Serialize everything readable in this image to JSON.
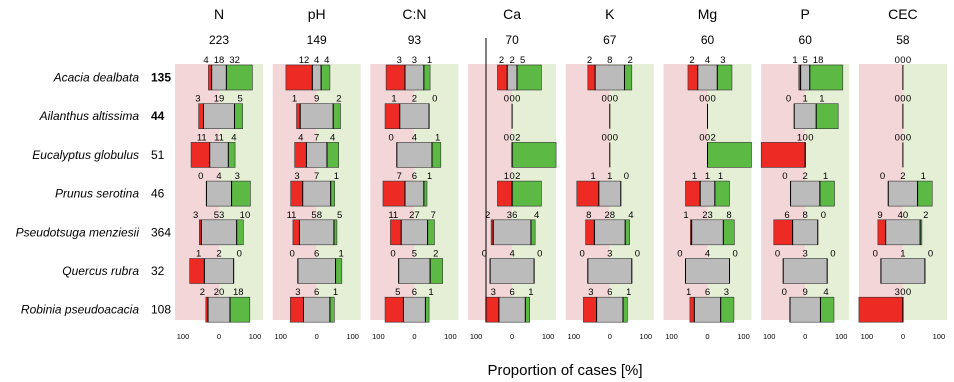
{
  "chart_data": {
    "type": "bar",
    "subtype": "diverging-stacked-bar-small-multiples",
    "xlabel": "Proportion of cases [%]",
    "axis_tick_labels": [
      "100",
      "0",
      "100"
    ],
    "xlim": [
      -100,
      100
    ],
    "legend": "none",
    "colors": {
      "negative": "#ee2a24",
      "neutral": "#bbbbbb",
      "positive": "#5bb944",
      "panel_negative_bg": "#f3d6d7",
      "panel_positive_bg": "#e5efd6"
    },
    "variables": [
      {
        "name": "N",
        "count": "223"
      },
      {
        "name": "pH",
        "count": "149"
      },
      {
        "name": "C:N",
        "count": "93"
      },
      {
        "name": "Ca",
        "count": "70"
      },
      {
        "name": "K",
        "count": "67"
      },
      {
        "name": "Mg",
        "count": "60"
      },
      {
        "name": "P",
        "count": "60"
      },
      {
        "name": "CEC",
        "count": "58"
      }
    ],
    "species": [
      {
        "name": "Acacia dealbata",
        "n": "135",
        "bold": true
      },
      {
        "name": "Ailanthus altissima",
        "n": "44",
        "bold": true
      },
      {
        "name": "Eucalyptus globulus",
        "n": "51",
        "bold": false
      },
      {
        "name": "Prunus serotina",
        "n": "46",
        "bold": false
      },
      {
        "name": "Pseudotsuga menziesii",
        "n": "364",
        "bold": false
      },
      {
        "name": "Quercus rubra",
        "n": "32",
        "bold": false
      },
      {
        "name": "Robinia pseudoacacia",
        "n": "108",
        "bold": false
      }
    ],
    "counts": [
      [
        [
          4,
          18,
          32
        ],
        [
          12,
          4,
          4
        ],
        [
          3,
          3,
          1
        ],
        [
          2,
          2,
          5
        ],
        [
          2,
          8,
          2
        ],
        [
          2,
          4,
          3
        ],
        [
          1,
          5,
          18
        ],
        [
          0,
          0,
          0
        ]
      ],
      [
        [
          3,
          19,
          5
        ],
        [
          1,
          9,
          2
        ],
        [
          1,
          2,
          0
        ],
        [
          0,
          0,
          0
        ],
        [
          0,
          0,
          0
        ],
        [
          0,
          0,
          0
        ],
        [
          0,
          1,
          1
        ],
        [
          0,
          0,
          0
        ]
      ],
      [
        [
          11,
          11,
          4
        ],
        [
          4,
          7,
          4
        ],
        [
          0,
          4,
          1
        ],
        [
          0,
          0,
          2
        ],
        [
          0,
          0,
          0
        ],
        [
          0,
          0,
          2
        ],
        [
          1,
          0,
          0
        ],
        [
          0,
          0,
          0
        ]
      ],
      [
        [
          0,
          4,
          3
        ],
        [
          3,
          7,
          1
        ],
        [
          7,
          6,
          1
        ],
        [
          1,
          0,
          2
        ],
        [
          1,
          1,
          0
        ],
        [
          1,
          1,
          1
        ],
        [
          0,
          2,
          1
        ],
        [
          0,
          2,
          1
        ]
      ],
      [
        [
          3,
          53,
          10
        ],
        [
          11,
          58,
          5
        ],
        [
          11,
          27,
          7
        ],
        [
          2,
          36,
          4
        ],
        [
          8,
          28,
          4
        ],
        [
          1,
          23,
          8
        ],
        [
          6,
          8,
          0
        ],
        [
          9,
          40,
          2
        ]
      ],
      [
        [
          1,
          2,
          0
        ],
        [
          0,
          6,
          1
        ],
        [
          0,
          5,
          2
        ],
        [
          0,
          4,
          0
        ],
        [
          0,
          3,
          0
        ],
        [
          0,
          4,
          0
        ],
        [
          0,
          3,
          0
        ],
        [
          0,
          1,
          0
        ]
      ],
      [
        [
          2,
          20,
          18
        ],
        [
          3,
          6,
          1
        ],
        [
          5,
          6,
          1
        ],
        [
          3,
          6,
          1
        ],
        [
          3,
          6,
          1
        ],
        [
          1,
          6,
          3
        ],
        [
          0,
          9,
          4
        ],
        [
          3,
          0,
          0
        ]
      ]
    ]
  }
}
